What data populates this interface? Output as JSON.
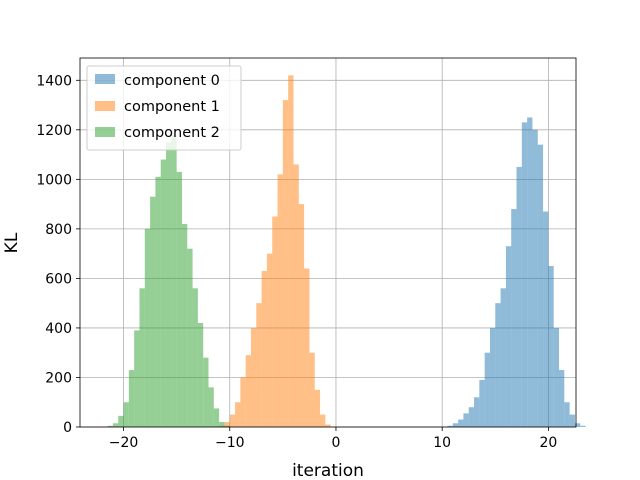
{
  "chart_data": {
    "type": "histogram",
    "title": "",
    "xlabel": "iteration",
    "ylabel": "KL",
    "xlim": [
      -24.1,
      22.6
    ],
    "ylim": [
      0,
      1490
    ],
    "xticks": [
      -20,
      -10,
      0,
      10,
      20
    ],
    "yticks": [
      0,
      200,
      400,
      600,
      800,
      1000,
      1200,
      1400
    ],
    "grid": true,
    "legend_position": "upper-left",
    "bar_opacity": 0.5,
    "series": [
      {
        "name": "component 0",
        "color": "#1f77b4",
        "bin_start": 10.5,
        "bin_width": 0.5,
        "counts": [
          5,
          15,
          30,
          55,
          80,
          120,
          190,
          300,
          400,
          500,
          560,
          730,
          880,
          1050,
          1230,
          1250,
          1200,
          1140,
          870,
          650,
          400,
          230,
          100,
          50,
          15,
          5
        ]
      },
      {
        "name": "component 1",
        "color": "#ff7f0e",
        "bin_start": -11.0,
        "bin_width": 0.5,
        "counts": [
          5,
          20,
          50,
          100,
          200,
          290,
          400,
          500,
          630,
          700,
          850,
          1020,
          1320,
          1420,
          1060,
          900,
          640,
          300,
          150,
          50,
          10
        ]
      },
      {
        "name": "component 2",
        "color": "#2ca02c",
        "bin_start": -21.5,
        "bin_width": 0.5,
        "counts": [
          5,
          15,
          45,
          100,
          230,
          390,
          560,
          800,
          930,
          1010,
          1080,
          1150,
          1180,
          1030,
          820,
          720,
          560,
          420,
          280,
          160,
          75,
          20,
          5
        ]
      }
    ]
  }
}
